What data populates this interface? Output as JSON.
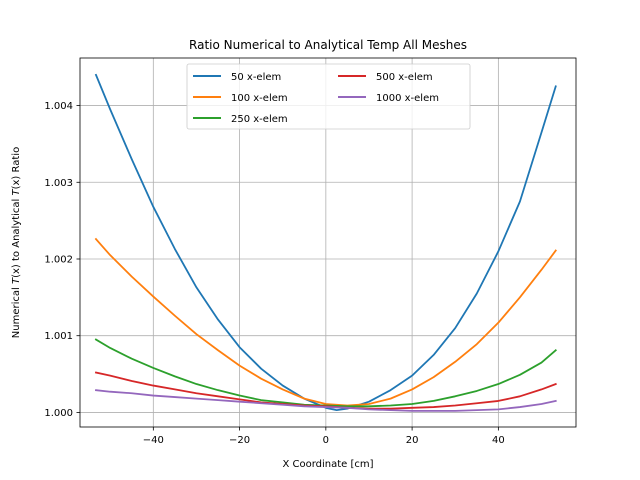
{
  "chart_data": {
    "type": "line",
    "title": "Ratio Numerical to Analytical Temp All Meshes",
    "xlabel": "X Coordinate [cm]",
    "ylabel_parts": [
      "Numerical ",
      "T",
      "(x)",
      " to Analytical ",
      "T",
      "(x)",
      " Ratio"
    ],
    "xlim": [
      -57,
      58
    ],
    "ylim": [
      0.99981,
      1.00462
    ],
    "xticks": [
      -40,
      -20,
      0,
      20,
      40
    ],
    "xtick_labels": [
      "−40",
      "−20",
      "0",
      "20",
      "40"
    ],
    "yticks": [
      1.0,
      1.001,
      1.002,
      1.003,
      1.004
    ],
    "ytick_labels": [
      "1.000",
      "1.001",
      "1.002",
      "1.003",
      "1.004"
    ],
    "grid": true,
    "legend_position": "top-center",
    "legend_columns": 2,
    "series": [
      {
        "name": "50 x-elem",
        "color": "#1f77b4",
        "x": [
          -53.3,
          -50,
          -45,
          -40,
          -35,
          -30,
          -25,
          -20,
          -15,
          -10,
          -5,
          0,
          2.5,
          5,
          10,
          15,
          20,
          25,
          30,
          35,
          40,
          45,
          50,
          53.3
        ],
        "y": [
          1.0044,
          1.00395,
          1.0033,
          1.00268,
          1.00213,
          1.00163,
          1.00121,
          1.00085,
          1.00057,
          1.00035,
          1.00018,
          1.00006,
          1.00003,
          1.00005,
          1.00014,
          1.00029,
          1.00048,
          1.00075,
          1.0011,
          1.00155,
          1.0021,
          1.00275,
          1.00365,
          1.00425
        ]
      },
      {
        "name": "100 x-elem",
        "color": "#ff7f0e",
        "x": [
          -53.3,
          -50,
          -45,
          -40,
          -35,
          -30,
          -25,
          -20,
          -15,
          -10,
          -5,
          0,
          5,
          10,
          15,
          20,
          25,
          30,
          35,
          40,
          45,
          50,
          53.3
        ],
        "y": [
          1.00226,
          1.00205,
          1.00177,
          1.00151,
          1.00126,
          1.00102,
          1.00081,
          1.00061,
          1.00044,
          1.0003,
          1.00018,
          1.00011,
          1.00009,
          1.00011,
          1.00018,
          1.0003,
          1.00046,
          1.00066,
          1.00089,
          1.00117,
          1.0015,
          1.00186,
          1.00211
        ]
      },
      {
        "name": "250 x-elem",
        "color": "#2ca02c",
        "x": [
          -53.3,
          -50,
          -45,
          -40,
          -35,
          -30,
          -25,
          -20,
          -15,
          -10,
          -5,
          0,
          5,
          10,
          15,
          20,
          25,
          30,
          35,
          40,
          45,
          50,
          53.3
        ],
        "y": [
          1.00095,
          1.00084,
          1.0007,
          1.00058,
          1.00047,
          1.00037,
          1.00029,
          1.00022,
          1.00016,
          1.00013,
          1.0001,
          1.00009,
          1.00008,
          1.00008,
          1.00009,
          1.00011,
          1.00015,
          1.00021,
          1.00028,
          1.00037,
          1.00049,
          1.00065,
          1.00081
        ]
      },
      {
        "name": "500 x-elem",
        "color": "#d62728",
        "x": [
          -53.3,
          -50,
          -45,
          -40,
          -35,
          -30,
          -25,
          -20,
          -15,
          -10,
          -5,
          0,
          5,
          10,
          15,
          20,
          25,
          30,
          35,
          40,
          45,
          50,
          53.3
        ],
        "y": [
          1.00052,
          1.00048,
          1.00041,
          1.00035,
          1.0003,
          1.00025,
          1.00021,
          1.00017,
          1.00013,
          1.00011,
          1.00009,
          1.00008,
          1.00006,
          1.00005,
          1.00005,
          1.00006,
          1.00007,
          1.00009,
          1.00012,
          1.00015,
          1.00021,
          1.0003,
          1.00037
        ]
      },
      {
        "name": "1000 x-elem",
        "color": "#9467bd",
        "x": [
          -53.3,
          -50,
          -45,
          -40,
          -35,
          -30,
          -25,
          -20,
          -15,
          -10,
          -5,
          0,
          5,
          10,
          15,
          20,
          25,
          30,
          35,
          40,
          45,
          50,
          53.3
        ],
        "y": [
          1.00029,
          1.00027,
          1.00025,
          1.00022,
          1.0002,
          1.00018,
          1.00016,
          1.00014,
          1.00012,
          1.0001,
          1.00008,
          1.00007,
          1.00006,
          1.00004,
          1.00003,
          1.00002,
          1.00002,
          1.00002,
          1.00003,
          1.00004,
          1.00007,
          1.00011,
          1.00015
        ]
      }
    ]
  }
}
